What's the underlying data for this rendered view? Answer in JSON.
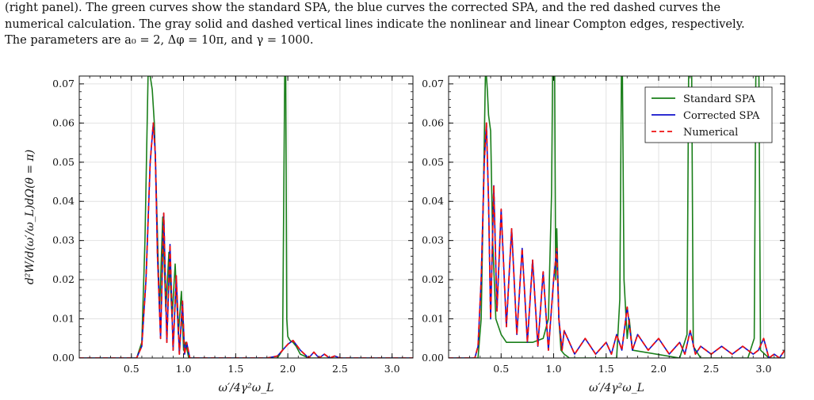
{
  "caption": {
    "lines": [
      "(right panel). The green curves show the standard SPA, the blue curves the corrected SPA, and the red dashed curves the",
      "numerical calculation. The gray solid and dashed vertical lines indicate the nonlinear and linear Compton edges, respectively.",
      "The parameters are a₀ = 2, Δφ = 10π, and γ = 1000."
    ]
  },
  "colors": {
    "standard": "#1a7f1a",
    "corrected": "#1111cc",
    "numerical": "#ee1111",
    "grid": "#e2e2e2"
  },
  "chart_data": [
    {
      "type": "line",
      "panel": "left",
      "xlabel": "ω′/4γ²ω_L",
      "ylabel": "d²W/d(ω′/ω_L)dΩ(θ = π)",
      "xlim": [
        0.0,
        3.2
      ],
      "ylim": [
        0.0,
        0.072
      ],
      "xticks": [
        "0.5",
        "1.0",
        "1.5",
        "2.0",
        "2.5",
        "3.0"
      ],
      "yticks": [
        "0.00",
        "0.01",
        "0.02",
        "0.03",
        "0.04",
        "0.05",
        "0.06",
        "0.07"
      ],
      "grid": true,
      "series": [
        {
          "name": "Standard SPA",
          "x": [
            0.0,
            0.55,
            0.6,
            0.63,
            0.66,
            0.68,
            0.7,
            0.72,
            0.74,
            0.77,
            0.8,
            0.83,
            0.86,
            0.89,
            0.92,
            0.95,
            0.98,
            1.0,
            1.02,
            1.05,
            1.1,
            1.5,
            1.9,
            1.95,
            1.97,
            1.98,
            1.99,
            2.0,
            2.02,
            2.05,
            2.08,
            2.12,
            2.2,
            3.2
          ],
          "y": [
            0.0,
            0.0,
            0.004,
            0.03,
            0.072,
            0.072,
            0.0685,
            0.06,
            0.041,
            0.012,
            0.036,
            0.012,
            0.027,
            0.01,
            0.024,
            0.006,
            0.017,
            0.002,
            0.004,
            0.0,
            0.0,
            0.0,
            0.0,
            0.002,
            0.072,
            0.072,
            0.01,
            0.0055,
            0.0045,
            0.004,
            0.003,
            0.001,
            0.0,
            0.0
          ]
        },
        {
          "name": "Corrected SPA",
          "x": [
            0.0,
            0.55,
            0.6,
            0.64,
            0.68,
            0.71,
            0.73,
            0.75,
            0.78,
            0.81,
            0.84,
            0.87,
            0.9,
            0.93,
            0.96,
            0.99,
            1.01,
            1.03,
            1.06,
            1.1,
            1.8,
            1.9,
            1.95,
            2.0,
            2.05,
            2.12,
            2.2,
            2.25,
            2.3,
            2.35,
            2.4,
            2.45,
            2.5,
            2.6,
            3.2
          ],
          "y": [
            0.0,
            0.0,
            0.003,
            0.02,
            0.05,
            0.06,
            0.052,
            0.026,
            0.005,
            0.037,
            0.004,
            0.029,
            0.002,
            0.021,
            0.001,
            0.0145,
            0.001,
            0.004,
            0.0,
            0.0,
            0.0,
            0.0005,
            0.002,
            0.0035,
            0.0045,
            0.002,
            0.0,
            0.0015,
            0.0,
            0.001,
            0.0,
            0.0005,
            0.0,
            0.0,
            0.0
          ]
        },
        {
          "name": "Numerical",
          "x": [
            0.0,
            0.55,
            0.6,
            0.64,
            0.68,
            0.71,
            0.73,
            0.75,
            0.78,
            0.81,
            0.84,
            0.87,
            0.9,
            0.93,
            0.96,
            0.99,
            1.01,
            1.03,
            1.06,
            1.1,
            1.8,
            1.9,
            1.95,
            2.0,
            2.05,
            2.12,
            2.2,
            2.25,
            2.3,
            2.35,
            2.4,
            2.45,
            2.5,
            2.6,
            3.2
          ],
          "y": [
            0.0,
            0.0,
            0.003,
            0.02,
            0.05,
            0.06,
            0.052,
            0.026,
            0.005,
            0.037,
            0.004,
            0.029,
            0.002,
            0.021,
            0.001,
            0.0145,
            0.001,
            0.004,
            0.0,
            0.0,
            0.0,
            0.0005,
            0.002,
            0.0035,
            0.0045,
            0.002,
            0.0,
            0.0015,
            0.0,
            0.001,
            0.0,
            0.0005,
            0.0,
            0.0,
            0.0
          ]
        }
      ]
    },
    {
      "type": "line",
      "panel": "right",
      "xlabel": "ω′/4γ²ω_L",
      "xlim": [
        0.0,
        3.2
      ],
      "ylim": [
        0.0,
        0.072
      ],
      "xticks": [
        "0.5",
        "1.0",
        "1.5",
        "2.0",
        "2.5",
        "3.0"
      ],
      "yticks": [
        "0.00",
        "0.01",
        "0.02",
        "0.03",
        "0.04",
        "0.05",
        "0.06",
        "0.07"
      ],
      "grid": true,
      "legend": {
        "placement": "top-right",
        "entries": [
          "Standard SPA",
          "Corrected SPA",
          "Numerical"
        ]
      },
      "series": [
        {
          "name": "Standard SPA",
          "x": [
            0.0,
            0.28,
            0.31,
            0.33,
            0.35,
            0.36,
            0.37,
            0.38,
            0.4,
            0.42,
            0.45,
            0.5,
            0.55,
            0.6,
            0.7,
            0.8,
            0.9,
            0.95,
            0.98,
            0.99,
            1.0,
            1.01,
            1.02,
            1.03,
            1.05,
            1.07,
            1.1,
            1.15,
            1.6,
            1.63,
            1.645,
            1.655,
            1.67,
            1.7,
            1.72,
            1.75,
            2.2,
            2.27,
            2.285,
            2.3,
            2.315,
            2.33,
            2.4,
            2.85,
            2.91,
            2.925,
            2.94,
            2.955,
            2.97,
            3.05,
            3.2
          ],
          "y": [
            0.0,
            0.0,
            0.01,
            0.04,
            0.072,
            0.072,
            0.068,
            0.062,
            0.058,
            0.03,
            0.01,
            0.006,
            0.004,
            0.004,
            0.004,
            0.004,
            0.005,
            0.01,
            0.042,
            0.072,
            0.072,
            0.072,
            0.02,
            0.033,
            0.01,
            0.002,
            0.001,
            0.0,
            0.0,
            0.015,
            0.072,
            0.072,
            0.02,
            0.005,
            0.01,
            0.002,
            0.0,
            0.006,
            0.072,
            0.072,
            0.072,
            0.003,
            0.0,
            0.0,
            0.005,
            0.072,
            0.072,
            0.072,
            0.002,
            0.0,
            0.0
          ]
        },
        {
          "name": "Corrected SPA",
          "x": [
            0.0,
            0.25,
            0.28,
            0.31,
            0.34,
            0.36,
            0.38,
            0.4,
            0.43,
            0.46,
            0.5,
            0.55,
            0.6,
            0.65,
            0.7,
            0.75,
            0.8,
            0.85,
            0.9,
            0.95,
            1.0,
            1.03,
            1.05,
            1.08,
            1.1,
            1.2,
            1.3,
            1.4,
            1.5,
            1.55,
            1.6,
            1.65,
            1.7,
            1.75,
            1.8,
            1.9,
            2.0,
            2.1,
            2.2,
            2.25,
            2.3,
            2.35,
            2.4,
            2.5,
            2.6,
            2.7,
            2.8,
            2.9,
            2.95,
            3.0,
            3.05,
            3.1,
            3.15,
            3.2
          ],
          "y": [
            0.0,
            0.0,
            0.003,
            0.02,
            0.05,
            0.06,
            0.04,
            0.01,
            0.044,
            0.012,
            0.038,
            0.008,
            0.033,
            0.006,
            0.028,
            0.004,
            0.025,
            0.003,
            0.022,
            0.002,
            0.02,
            0.028,
            0.01,
            0.002,
            0.007,
            0.001,
            0.005,
            0.001,
            0.004,
            0.001,
            0.006,
            0.002,
            0.013,
            0.002,
            0.006,
            0.002,
            0.005,
            0.001,
            0.004,
            0.001,
            0.007,
            0.001,
            0.003,
            0.001,
            0.003,
            0.001,
            0.003,
            0.001,
            0.002,
            0.005,
            0.0,
            0.001,
            0.0,
            0.002
          ]
        },
        {
          "name": "Numerical",
          "x": [
            0.0,
            0.25,
            0.28,
            0.31,
            0.34,
            0.36,
            0.38,
            0.4,
            0.43,
            0.46,
            0.5,
            0.55,
            0.6,
            0.65,
            0.7,
            0.75,
            0.8,
            0.85,
            0.9,
            0.95,
            1.0,
            1.03,
            1.05,
            1.08,
            1.1,
            1.2,
            1.3,
            1.4,
            1.5,
            1.55,
            1.6,
            1.65,
            1.7,
            1.75,
            1.8,
            1.9,
            2.0,
            2.1,
            2.2,
            2.25,
            2.3,
            2.35,
            2.4,
            2.5,
            2.6,
            2.7,
            2.8,
            2.9,
            2.95,
            3.0,
            3.05,
            3.1,
            3.15,
            3.2
          ],
          "y": [
            0.0,
            0.0,
            0.003,
            0.02,
            0.05,
            0.06,
            0.04,
            0.01,
            0.044,
            0.012,
            0.038,
            0.008,
            0.033,
            0.006,
            0.028,
            0.004,
            0.025,
            0.003,
            0.022,
            0.002,
            0.02,
            0.028,
            0.01,
            0.002,
            0.007,
            0.001,
            0.005,
            0.001,
            0.004,
            0.001,
            0.006,
            0.002,
            0.013,
            0.002,
            0.006,
            0.002,
            0.005,
            0.001,
            0.004,
            0.001,
            0.007,
            0.001,
            0.003,
            0.001,
            0.003,
            0.001,
            0.003,
            0.001,
            0.002,
            0.005,
            0.0,
            0.001,
            0.0,
            0.002
          ]
        }
      ]
    }
  ]
}
